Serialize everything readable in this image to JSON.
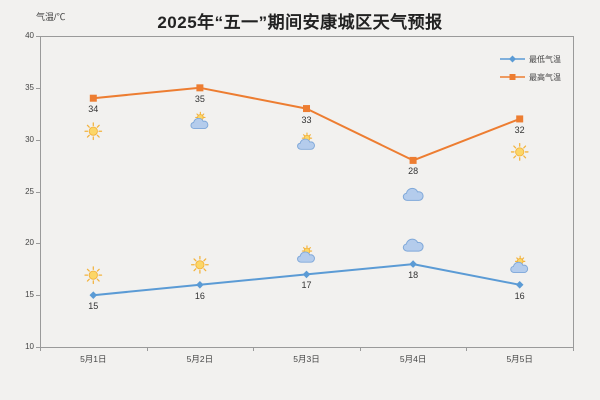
{
  "title": "2025年“五一”期间安康城区天气预报",
  "y_axis_title": "气温/℃",
  "legend": {
    "items": [
      {
        "label": "最低气温",
        "color": "#5b9bd5",
        "marker": "diamond"
      },
      {
        "label": "最高气温",
        "color": "#ed7d31",
        "marker": "square"
      }
    ]
  },
  "chart_data": {
    "type": "line",
    "title": "2025年“五一”期间安康城区天气预报",
    "categories": [
      "5月1日",
      "5月2日",
      "5月3日",
      "5月4日",
      "5月5日"
    ],
    "series": [
      {
        "name": "最高气温",
        "color": "#ed7d31",
        "marker": "square",
        "values": [
          34,
          35,
          33,
          28,
          32
        ],
        "weather_icons": [
          "sun",
          "sun-cloud",
          "sun-cloud",
          "cloud",
          "sun"
        ],
        "icon_position": "below"
      },
      {
        "name": "最低气温",
        "color": "#5b9bd5",
        "marker": "diamond",
        "values": [
          15,
          16,
          17,
          18,
          16
        ],
        "weather_icons": [
          "sun",
          "sun",
          "sun-cloud",
          "cloud",
          "sun-cloud"
        ],
        "icon_position": "above"
      }
    ],
    "ylabel": "气温/℃",
    "ylim": [
      10,
      40
    ],
    "yticks": [
      10,
      15,
      20,
      25,
      30,
      35,
      40
    ],
    "grid": false,
    "legend_position": "top-right"
  }
}
